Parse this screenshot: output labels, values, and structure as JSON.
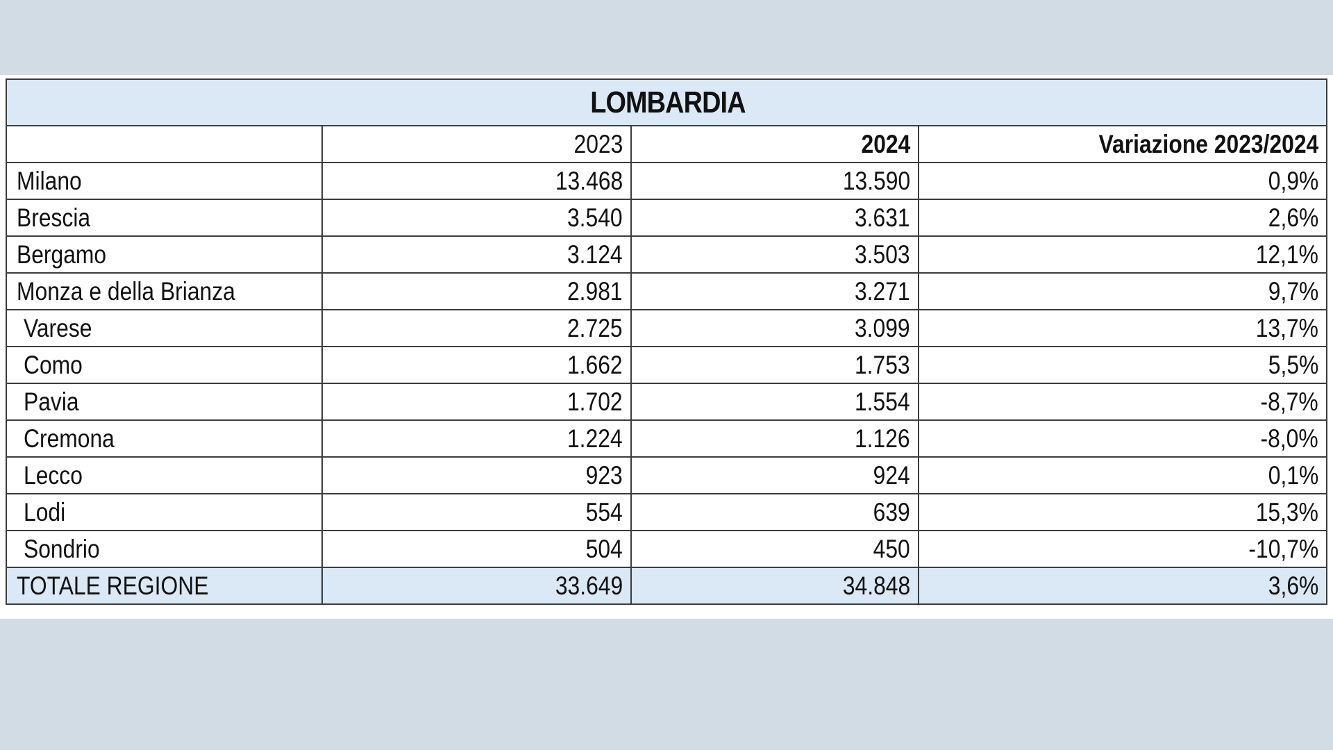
{
  "table": {
    "title": "LOMBARDIA",
    "columns": [
      "",
      "2023",
      "2024",
      "Variazione 2023/2024"
    ],
    "rows": [
      {
        "name": "Milano",
        "v2023": "13.468",
        "v2024": "13.590",
        "variazione": "0,9%"
      },
      {
        "name": "Brescia",
        "v2023": "3.540",
        "v2024": "3.631",
        "variazione": "2,6%"
      },
      {
        "name": "Bergamo",
        "v2023": "3.124",
        "v2024": "3.503",
        "variazione": "12,1%"
      },
      {
        "name": "Monza e della Brianza",
        "v2023": "2.981",
        "v2024": "3.271",
        "variazione": "9,7%"
      },
      {
        "name": "Varese",
        "v2023": "2.725",
        "v2024": "3.099",
        "variazione": "13,7%"
      },
      {
        "name": "Como",
        "v2023": "1.662",
        "v2024": "1.753",
        "variazione": "5,5%"
      },
      {
        "name": "Pavia",
        "v2023": "1.702",
        "v2024": "1.554",
        "variazione": "-8,7%"
      },
      {
        "name": "Cremona",
        "v2023": "1.224",
        "v2024": "1.126",
        "variazione": "-8,0%"
      },
      {
        "name": "Lecco",
        "v2023": "923",
        "v2024": "924",
        "variazione": "0,1%"
      },
      {
        "name": "Lodi",
        "v2023": "554",
        "v2024": "639",
        "variazione": "15,3%"
      },
      {
        "name": "Sondrio",
        "v2023": "504",
        "v2024": "450",
        "variazione": "-10,7%"
      }
    ],
    "total": {
      "name": "TOTALE REGIONE",
      "v2023": "33.649",
      "v2024": "34.848",
      "variazione": "3,6%"
    }
  }
}
